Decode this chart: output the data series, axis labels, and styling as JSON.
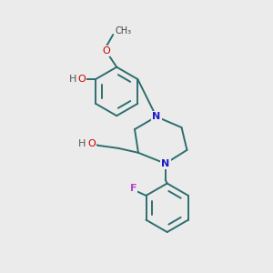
{
  "bg_color": "#ebebeb",
  "bond_color": "#2d6e6e",
  "atom_colors": {
    "O": "#cc0000",
    "H": "#555555",
    "N": "#1a1acc",
    "F": "#bb44cc"
  },
  "figsize": [
    3.0,
    3.0
  ],
  "dpi": 100
}
